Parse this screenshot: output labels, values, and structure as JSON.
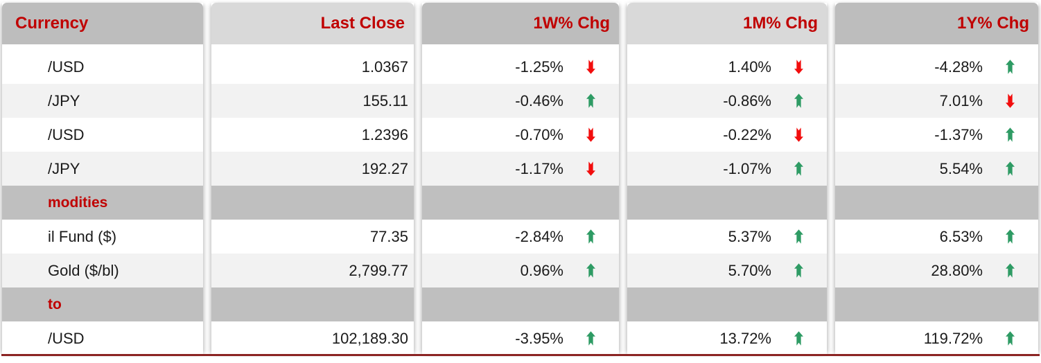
{
  "colors": {
    "header_text": "#C00000",
    "header_bg_dark": "#BDBDBD",
    "header_bg_light": "#D9D9D9",
    "section_bg": "#BFBFBF",
    "stripe_bg": "#F2F2F2",
    "row_bg": "#FFFFFF",
    "value_text": "#1A1A1A",
    "up_arrow": "#2E9B64",
    "down_arrow": "#F20D0D",
    "bottom_rule": "#8B2423"
  },
  "table": {
    "columns": [
      {
        "key": "name",
        "label": "Currency",
        "shade": "dark",
        "align": "left"
      },
      {
        "key": "last_close",
        "label": "Last Close",
        "shade": "light",
        "align": "right"
      },
      {
        "key": "w1",
        "label": "1W% Chg",
        "shade": "dark",
        "align": "right"
      },
      {
        "key": "m1",
        "label": "1M% Chg",
        "shade": "light",
        "align": "right"
      },
      {
        "key": "y1",
        "label": "1Y% Chg",
        "shade": "dark",
        "align": "right"
      }
    ],
    "rows": [
      {
        "type": "data",
        "name": "/USD",
        "last_close": "1.0367",
        "w1": {
          "value": "-1.25%",
          "arrow": "down"
        },
        "m1": {
          "value": "1.40%",
          "arrow": "down"
        },
        "y1": {
          "value": "-4.28%",
          "arrow": "up"
        }
      },
      {
        "type": "data",
        "name": "/JPY",
        "last_close": "155.11",
        "w1": {
          "value": "-0.46%",
          "arrow": "up"
        },
        "m1": {
          "value": "-0.86%",
          "arrow": "up"
        },
        "y1": {
          "value": "7.01%",
          "arrow": "down"
        }
      },
      {
        "type": "data",
        "name": "/USD",
        "last_close": "1.2396",
        "w1": {
          "value": "-0.70%",
          "arrow": "down"
        },
        "m1": {
          "value": "-0.22%",
          "arrow": "down"
        },
        "y1": {
          "value": "-1.37%",
          "arrow": "up"
        }
      },
      {
        "type": "data",
        "name": "/JPY",
        "last_close": "192.27",
        "w1": {
          "value": "-1.17%",
          "arrow": "down"
        },
        "m1": {
          "value": "-1.07%",
          "arrow": "up"
        },
        "y1": {
          "value": "5.54%",
          "arrow": "up"
        }
      },
      {
        "type": "section",
        "name": "modities"
      },
      {
        "type": "data",
        "name": "il Fund ($)",
        "last_close": "77.35",
        "w1": {
          "value": "-2.84%",
          "arrow": "up"
        },
        "m1": {
          "value": "5.37%",
          "arrow": "up"
        },
        "y1": {
          "value": "6.53%",
          "arrow": "up"
        }
      },
      {
        "type": "data",
        "name": "Gold ($/bl)",
        "last_close": "2,799.77",
        "w1": {
          "value": "0.96%",
          "arrow": "up"
        },
        "m1": {
          "value": "5.70%",
          "arrow": "up"
        },
        "y1": {
          "value": "28.80%",
          "arrow": "up"
        }
      },
      {
        "type": "section",
        "name": "to"
      },
      {
        "type": "data",
        "name": "/USD",
        "last_close": "102,189.30",
        "w1": {
          "value": "-3.95%",
          "arrow": "up"
        },
        "m1": {
          "value": "13.72%",
          "arrow": "up"
        },
        "y1": {
          "value": "119.72%",
          "arrow": "up"
        }
      }
    ]
  },
  "chart_data": {
    "type": "table",
    "columns": [
      "Currency",
      "Last Close",
      "1W% Chg",
      "1M% Chg",
      "1Y% Chg"
    ],
    "sections": [
      {
        "header": null,
        "rows": [
          [
            "/USD",
            1.0367,
            -1.25,
            1.4,
            -4.28
          ],
          [
            "/JPY",
            155.11,
            -0.46,
            -0.86,
            7.01
          ],
          [
            "/USD",
            1.2396,
            -0.7,
            -0.22,
            -1.37
          ],
          [
            "/JPY",
            192.27,
            -1.17,
            -1.07,
            5.54
          ]
        ]
      },
      {
        "header": "modities",
        "rows": [
          [
            "il Fund ($)",
            77.35,
            -2.84,
            5.37,
            6.53
          ],
          [
            "Gold ($/bl)",
            2799.77,
            0.96,
            5.7,
            28.8
          ]
        ]
      },
      {
        "header": "to",
        "rows": [
          [
            "/USD",
            102189.3,
            -3.95,
            13.72,
            119.72
          ]
        ]
      }
    ],
    "trend_arrows": {
      "w1": [
        "down",
        "up",
        "down",
        "down",
        "up",
        "up",
        "up"
      ],
      "m1": [
        "down",
        "up",
        "down",
        "up",
        "up",
        "up",
        "up"
      ],
      "y1": [
        "up",
        "down",
        "up",
        "up",
        "up",
        "up",
        "up"
      ]
    }
  }
}
